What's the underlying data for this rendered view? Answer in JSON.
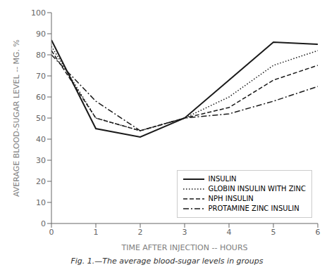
{
  "chart_data": {
    "type": "line",
    "caption": "Fig. 1.—The average blood-sugar levels in groups",
    "xlabel": "TIME AFTER INJECTION -- HOURS",
    "ylabel": "AVERAGE BLOOD-SUGAR LEVEL -- MG. %",
    "x": [
      0,
      1,
      2,
      3,
      4,
      5,
      6
    ],
    "series": [
      {
        "name": "INSULIN",
        "color": "#1a1a1a",
        "line_style": "solid",
        "values": [
          87,
          45,
          41,
          50,
          68,
          86,
          85
        ]
      },
      {
        "name": "GLOBIN INSULIN WITH ZINC",
        "color": "#1a1a1a",
        "line_style": "dotted",
        "values": [
          84,
          50,
          44,
          50,
          60,
          75,
          82
        ]
      },
      {
        "name": "NPH INSULIN",
        "color": "#1a1a1a",
        "line_style": "dashed",
        "values": [
          82,
          50,
          44,
          50,
          55,
          68,
          75
        ]
      },
      {
        "name": "PROTAMINE ZINC INSULIN",
        "color": "#1a1a1a",
        "line_style": "dashdot",
        "values": [
          80,
          58,
          44,
          50,
          52,
          58,
          65
        ]
      }
    ],
    "xlim": [
      0,
      6
    ],
    "ylim": [
      0,
      100
    ],
    "xticks": [
      0,
      1,
      2,
      3,
      4,
      5,
      6
    ],
    "yticks": [
      0,
      10,
      20,
      30,
      40,
      50,
      60,
      70,
      80,
      90,
      100
    ],
    "grid": false,
    "legend": "lower right"
  }
}
